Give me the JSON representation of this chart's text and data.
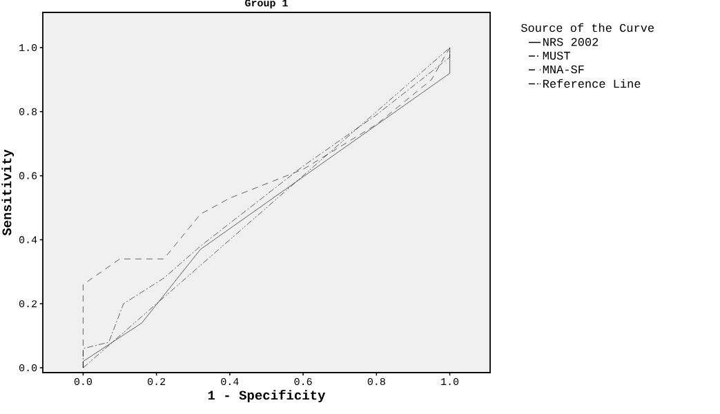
{
  "chart_data": {
    "type": "line",
    "title": "Group 1",
    "xlabel": "1 - Specificity",
    "ylabel": "Sensitivity",
    "legend_title": "Source of the Curve",
    "xlim": [
      -0.11,
      1.11
    ],
    "ylim": [
      -0.015,
      1.11
    ],
    "xticks": [
      {
        "value": 0,
        "label": "0.0"
      },
      {
        "value": 0.2,
        "label": "0.2"
      },
      {
        "value": 0.4,
        "label": "0.4"
      },
      {
        "value": 0.6,
        "label": "0.6"
      },
      {
        "value": 0.8,
        "label": "0.8"
      },
      {
        "value": 1,
        "label": "1.0"
      }
    ],
    "yticks": [
      {
        "value": 0,
        "label": "0.0"
      },
      {
        "value": 0.2,
        "label": "0.2"
      },
      {
        "value": 0.4,
        "label": "0.4"
      },
      {
        "value": 0.6,
        "label": "0.6"
      },
      {
        "value": 0.8,
        "label": "0.8"
      },
      {
        "value": 1,
        "label": "1.0"
      }
    ],
    "legend": "right",
    "grid": false,
    "marker": "none",
    "series": [
      {
        "name": "NRS 2002",
        "color": "#000000",
        "line_style": "solid",
        "x": [
          0,
          0,
          0.16,
          0.32,
          1,
          1
        ],
        "values": [
          0,
          0.02,
          0.14,
          0.37,
          0.92,
          1
        ]
      },
      {
        "name": "MUST",
        "color": "#000000",
        "line_style": "dashdot",
        "x": [
          0,
          0,
          0.07,
          0.11,
          0.22,
          0.32,
          0.6,
          0.8,
          1,
          1
        ],
        "values": [
          0,
          0.06,
          0.08,
          0.2,
          0.28,
          0.38,
          0.63,
          0.79,
          0.97,
          1
        ]
      },
      {
        "name": "MNA-SF",
        "color": "#000000",
        "line_style": "dashed",
        "x": [
          0,
          0,
          0.1,
          0.22,
          0.32,
          0.4,
          0.6,
          0.8,
          0.95,
          1
        ],
        "values": [
          0,
          0.26,
          0.34,
          0.34,
          0.48,
          0.53,
          0.62,
          0.76,
          0.9,
          1
        ]
      },
      {
        "name": "Reference Line",
        "color": "#000000",
        "line_style": "dashdotdot",
        "x": [
          0,
          1
        ],
        "values": [
          0,
          1
        ]
      }
    ]
  }
}
